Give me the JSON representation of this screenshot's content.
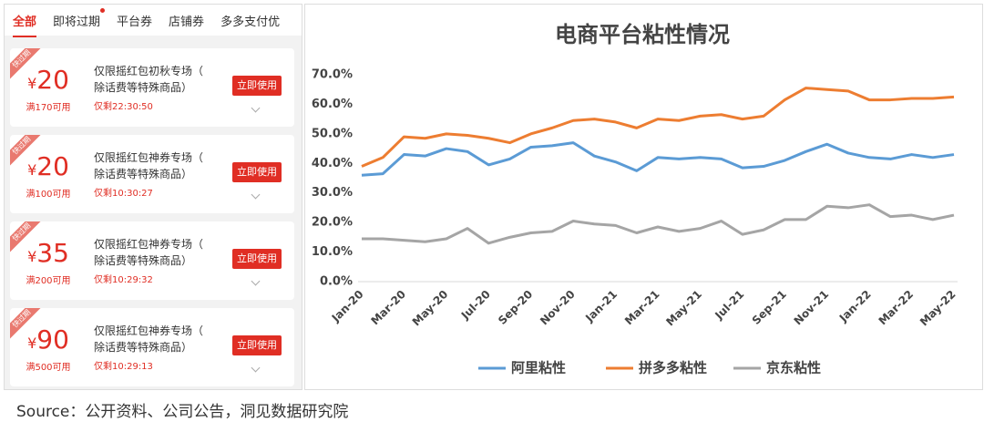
{
  "tabs": [
    "全部",
    "即将过期",
    "平台券",
    "店铺券",
    "多多支付优"
  ],
  "coupons": [
    {
      "tag": "快过期",
      "currency": "¥",
      "amount": 20,
      "condition": "满170可用",
      "title_lines": [
        "仅限摇红包初秋专场（",
        "除话费等特殊商品）"
      ],
      "timer": "仅剩22:30:50",
      "button": "立即使用"
    },
    {
      "tag": "快过期",
      "currency": "¥",
      "amount": 20,
      "condition": "满100可用",
      "title_lines": [
        "仅限摇红包神券专场（",
        "除话费等特殊商品）"
      ],
      "timer": "仅剩10:30:27",
      "button": "立即使用"
    },
    {
      "tag": "快过期",
      "currency": "¥",
      "amount": 35,
      "condition": "满200可用",
      "title_lines": [
        "仅限摇红包神券专场（",
        "除话费等特殊商品）"
      ],
      "timer": "仅剩10:29:32",
      "button": "立即使用"
    },
    {
      "tag": "快过期",
      "currency": "¥",
      "amount": 90,
      "condition": "满500可用",
      "title_lines": [
        "仅限摇红包神券专场（",
        "除话费等特殊商品）"
      ],
      "timer": "仅剩10:29:13",
      "button": "立即使用"
    }
  ],
  "chart_data": {
    "type": "line",
    "title": "电商平台粘性情况",
    "categories": [
      "Jan-20",
      null,
      "Mar-20",
      null,
      "May-20",
      null,
      "Jul-20",
      null,
      "Sep-20",
      null,
      "Nov-20",
      null,
      "Jan-21",
      null,
      "Mar-21",
      null,
      "May-21",
      null,
      "Jul-21",
      null,
      "Sep-21",
      null,
      "Nov-21",
      null,
      "Jan-22",
      null,
      "Mar-22",
      null,
      "May-22"
    ],
    "series": [
      {
        "name": "阿里粘性",
        "color": "#5b9bd5",
        "values": [
          36,
          36.5,
          43,
          42.5,
          45,
          44,
          39.5,
          41.5,
          45.5,
          46,
          47,
          42.5,
          40.5,
          37.5,
          42,
          41.5,
          42,
          41.5,
          38.5,
          39,
          41,
          44,
          46.5,
          43.5,
          42,
          41.5,
          43,
          42,
          43
        ]
      },
      {
        "name": "拼多多粘性",
        "color": "#ed7d31",
        "values": [
          39,
          42,
          49,
          48.5,
          50,
          49.5,
          48.5,
          47,
          50,
          52,
          54.5,
          55,
          54,
          52,
          55,
          54.5,
          56,
          56.5,
          55,
          56,
          61.5,
          65.5,
          65,
          64.5,
          61.5,
          61.5,
          62,
          62,
          62.5
        ]
      },
      {
        "name": "京东粘性",
        "color": "#a5a5a5",
        "values": [
          14.5,
          14.5,
          14,
          13.5,
          14.5,
          18,
          13,
          15,
          16.5,
          17,
          20.5,
          19.5,
          19,
          16.5,
          18.5,
          17,
          18,
          20.5,
          16,
          17.5,
          21,
          21,
          25.5,
          25,
          26,
          22,
          22.5,
          21,
          22.5
        ]
      }
    ],
    "ylim": [
      0,
      70
    ],
    "yticks": [
      {
        "value": 0,
        "label": "0.0%"
      },
      {
        "value": 10,
        "label": "10.0%"
      },
      {
        "value": 20,
        "label": "20.0%"
      },
      {
        "value": 30,
        "label": "30.0%"
      },
      {
        "value": 40,
        "label": "40.0%"
      },
      {
        "value": 50,
        "label": "50.0%"
      },
      {
        "value": 60,
        "label": "60.0%"
      },
      {
        "value": 70,
        "label": "70.0%"
      }
    ],
    "legend": "bottom"
  },
  "source": "Source：公开资料、公司公告，洞见数据研究院"
}
